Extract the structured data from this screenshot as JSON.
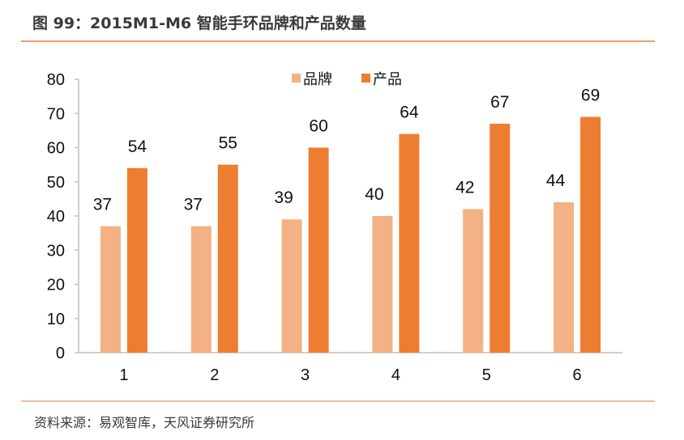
{
  "title": "图 99：2015M1-M6 智能手环品牌和产品数量",
  "source": "资料来源：易观智库，天风证券研究所",
  "colors": {
    "brand": "#f4b183",
    "product": "#ed7d31",
    "rule_top": "#ed7d31",
    "rule_bottom": "#e2a882",
    "axis": "#bfbfbf"
  },
  "chart_data": {
    "type": "bar",
    "categories": [
      "1",
      "2",
      "3",
      "4",
      "5",
      "6"
    ],
    "series": [
      {
        "name": "品牌",
        "values": [
          37,
          37,
          39,
          40,
          42,
          44
        ]
      },
      {
        "name": "产品",
        "values": [
          54,
          55,
          60,
          64,
          67,
          69
        ]
      }
    ],
    "ylim": [
      0,
      80
    ],
    "yticks": [
      0,
      10,
      20,
      30,
      40,
      50,
      60,
      70,
      80
    ],
    "grid": false,
    "legend": "top-center",
    "data_labels": true
  }
}
